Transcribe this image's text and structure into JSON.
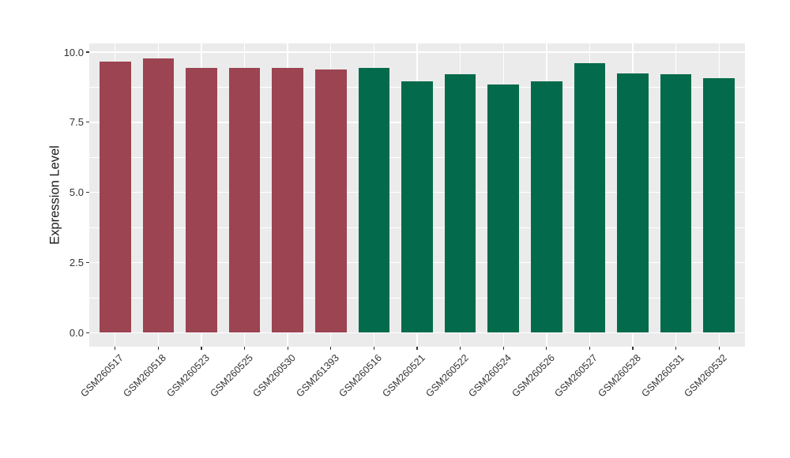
{
  "chart_data": {
    "type": "bar",
    "title": "",
    "xlabel": "",
    "ylabel": "Expression Level",
    "categories": [
      "GSM260517",
      "GSM260518",
      "GSM260523",
      "GSM260525",
      "GSM260530",
      "GSM261393",
      "GSM260516",
      "GSM260521",
      "GSM260522",
      "GSM260524",
      "GSM260526",
      "GSM260527",
      "GSM260528",
      "GSM260531",
      "GSM260532"
    ],
    "values": [
      9.66,
      9.78,
      9.44,
      9.44,
      9.44,
      9.37,
      9.44,
      8.96,
      9.21,
      8.85,
      8.95,
      9.61,
      9.24,
      9.21,
      9.07
    ],
    "bar_colors": [
      "#9C4451",
      "#9C4451",
      "#9C4451",
      "#9C4451",
      "#9C4451",
      "#9C4451",
      "#036B4B",
      "#036B4B",
      "#036B4B",
      "#036B4B",
      "#036B4B",
      "#036B4B",
      "#036B4B",
      "#036B4B",
      "#036B4B"
    ],
    "group_colors": {
      "maroon": "#9C4451",
      "green": "#036B4B"
    },
    "ylim": [
      0,
      10.3
    ],
    "yticks": [
      0.0,
      2.5,
      5.0,
      7.5,
      10.0
    ],
    "ytick_labels": [
      "0.0",
      "2.5",
      "5.0",
      "7.5",
      "10.0"
    ],
    "yminor_ticks": [
      1.25,
      3.75,
      6.25,
      8.75
    ],
    "grid": "on",
    "grid_color": "#FFFFFF",
    "panel_bg": "#EBEBEB",
    "figure_bg": "#FFFFFF",
    "legend_position": "none"
  }
}
